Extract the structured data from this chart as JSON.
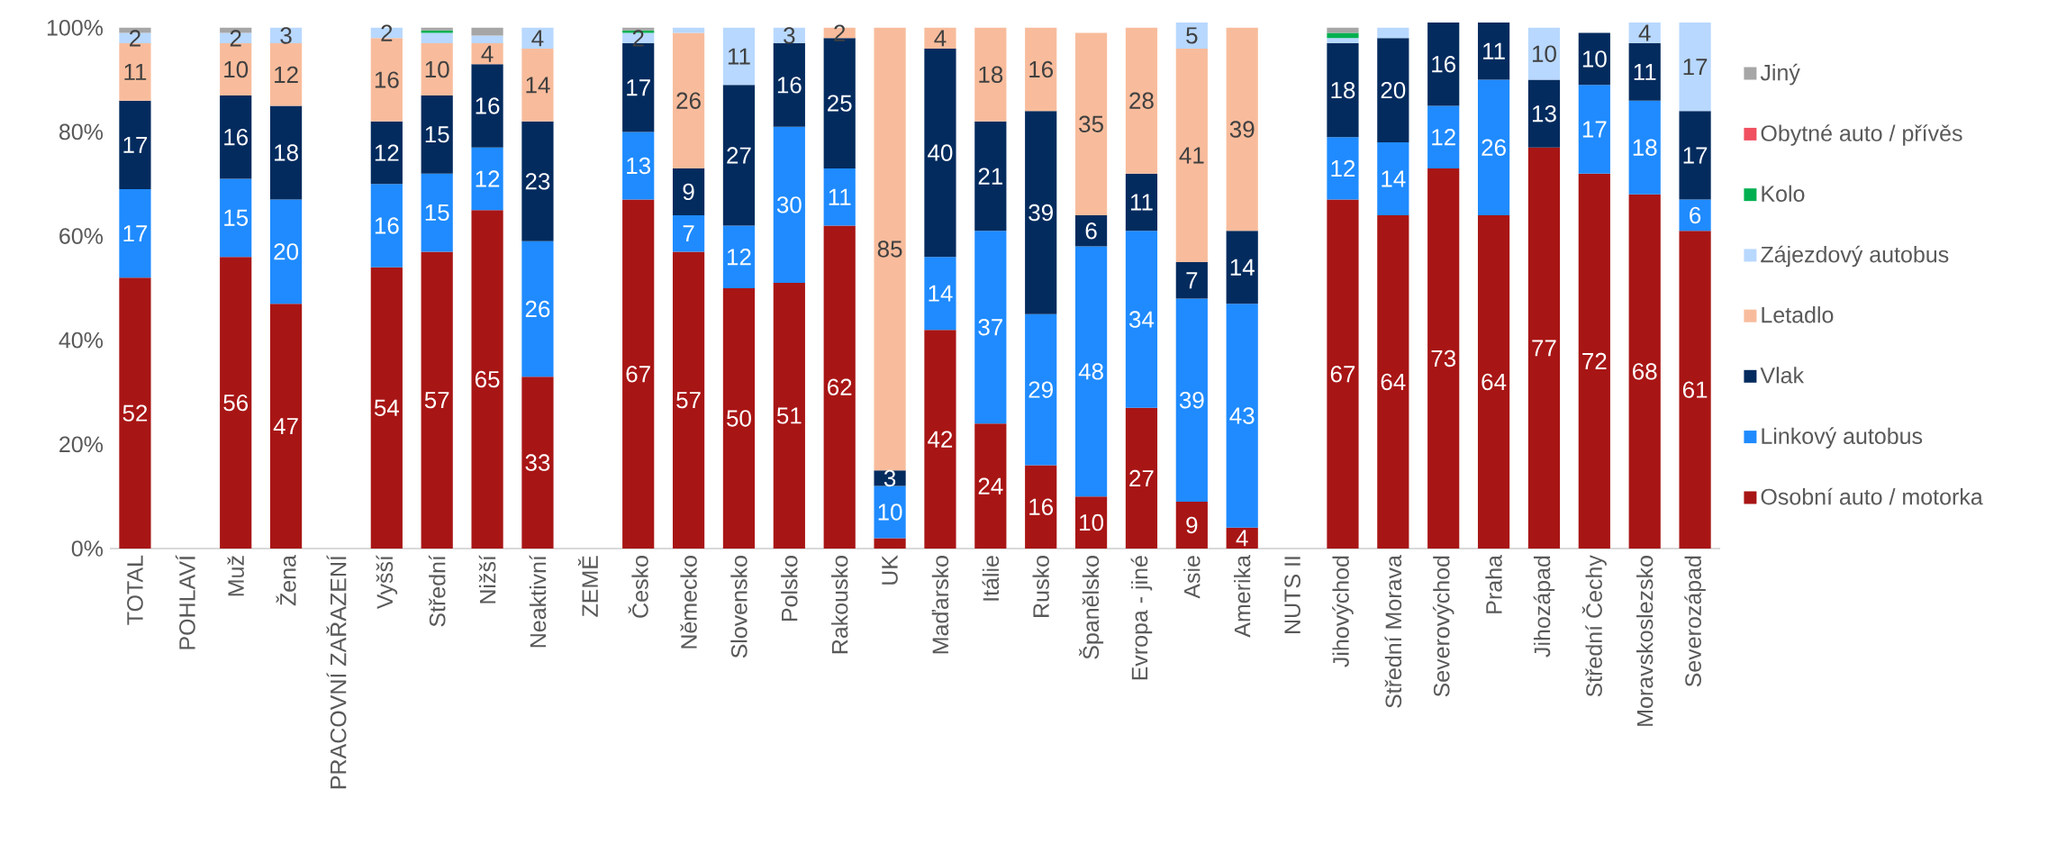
{
  "chart_data": {
    "type": "bar",
    "stacked": true,
    "legend": "right",
    "categories": [
      "TOTAL",
      "POHLAVÍ",
      "Muž",
      "Žena",
      "PRACOVNÍ ZAŘAZENÍ",
      "Vyšší",
      "Střední",
      "Nižší",
      "Neaktivní",
      "ZEMĚ",
      "Česko",
      "Německo",
      "Slovensko",
      "Polsko",
      "Rakousko",
      "UK",
      "Maďarsko",
      "Itálie",
      "Rusko",
      "Španělsko",
      "Evropa - jiné",
      "Asie",
      "Amerika",
      "NUTS II",
      "Jihovýchod",
      "Střední Morava",
      "Severovýchod",
      "Praha",
      "Jihozápad",
      "Střední Čechy",
      "Moravskoslezsko",
      "Severozápad"
    ],
    "ylim": [
      0,
      101
    ],
    "yticks": [
      {
        "value": 0,
        "label": "0%"
      },
      {
        "value": 20,
        "label": "20%"
      },
      {
        "value": 40,
        "label": "40%"
      },
      {
        "value": 60,
        "label": "60%"
      },
      {
        "value": 80,
        "label": "80%"
      },
      {
        "value": 100,
        "label": "100%"
      }
    ],
    "series": [
      {
        "name": "Osobní auto / motorka",
        "color": "#a81515",
        "values": [
          52,
          null,
          56,
          47,
          null,
          54,
          57,
          65,
          33,
          null,
          67,
          57,
          50,
          51,
          62,
          2,
          42,
          24,
          16,
          10,
          27,
          9,
          4,
          null,
          67,
          64,
          73,
          64,
          77,
          72,
          68,
          61
        ],
        "value_labels": [
          "52",
          null,
          "56",
          "47",
          null,
          "54",
          "57",
          "65",
          "33",
          null,
          "67",
          "57",
          "50",
          "51",
          "62",
          null,
          "42",
          "24",
          "16",
          "10",
          "27",
          "9",
          "4",
          null,
          "67",
          "64",
          "73",
          "64",
          "77",
          "72",
          "68",
          "61"
        ]
      },
      {
        "name": "Linkový autobus",
        "color": "#1f8bff",
        "values": [
          17,
          null,
          15,
          20,
          null,
          16,
          15,
          12,
          26,
          null,
          13,
          7,
          12,
          30,
          11,
          10,
          14,
          37,
          29,
          48,
          34,
          39,
          43,
          null,
          12,
          14,
          12,
          26,
          null,
          17,
          18,
          6
        ],
        "value_labels": [
          "17",
          null,
          "15",
          "20",
          null,
          "16",
          "15",
          "12",
          "26",
          null,
          "13",
          "7",
          "12",
          "30",
          "11",
          "10",
          "14",
          "37",
          "29",
          "48",
          "34",
          "39",
          "43",
          null,
          "12",
          "14",
          "12",
          "26",
          null,
          "17",
          "18",
          "6"
        ]
      },
      {
        "name": "Vlak",
        "color": "#032b5e",
        "values": [
          17,
          null,
          16,
          18,
          null,
          12,
          15,
          16,
          23,
          null,
          17,
          9,
          27,
          16,
          25,
          3,
          40,
          21,
          39,
          6,
          11,
          7,
          14,
          null,
          18,
          20,
          16,
          11,
          13,
          10,
          11,
          17
        ],
        "value_labels": [
          "17",
          null,
          "16",
          "18",
          null,
          "12",
          "15",
          "16",
          "23",
          null,
          "17",
          "9",
          "27",
          "16",
          "25",
          "3",
          "40",
          "21",
          "39",
          "6",
          "11",
          "7",
          "14",
          null,
          "18",
          "20",
          "16",
          "11",
          "13",
          "10",
          "11",
          "17"
        ]
      },
      {
        "name": "Letadlo",
        "color": "#f8bc9c",
        "values": [
          11,
          null,
          10,
          12,
          null,
          16,
          10,
          4,
          14,
          null,
          null,
          26,
          null,
          null,
          2,
          85,
          4,
          18,
          16,
          35,
          28,
          41,
          39,
          null,
          null,
          null,
          null,
          null,
          null,
          null,
          null,
          null
        ],
        "value_labels": [
          "11",
          null,
          "10",
          "12",
          null,
          "16",
          "10",
          "4",
          "14",
          null,
          null,
          "26",
          null,
          null,
          "2",
          "85",
          "4",
          "18",
          "16",
          "35",
          "28",
          "41",
          "39",
          null,
          null,
          null,
          null,
          null,
          null,
          null,
          null,
          null
        ]
      },
      {
        "name": "Zájezdový autobus",
        "color": "#b8d8ff",
        "values": [
          2,
          null,
          2,
          3,
          null,
          2,
          2,
          1.5,
          4,
          null,
          2,
          1,
          11,
          3,
          null,
          null,
          null,
          null,
          null,
          null,
          null,
          5,
          null,
          null,
          1,
          2,
          null,
          null,
          10,
          null,
          4,
          17
        ],
        "value_labels": [
          "2",
          null,
          "2",
          "3",
          null,
          "2",
          null,
          null,
          "4",
          null,
          "2",
          null,
          "11",
          "3",
          null,
          null,
          null,
          null,
          null,
          null,
          null,
          "5",
          null,
          null,
          null,
          null,
          null,
          null,
          "10",
          null,
          "4",
          "17"
        ]
      },
      {
        "name": "Kolo",
        "color": "#00b050",
        "values": [
          null,
          null,
          null,
          null,
          null,
          null,
          0.5,
          null,
          null,
          null,
          0.5,
          null,
          null,
          null,
          null,
          null,
          null,
          null,
          null,
          null,
          null,
          null,
          null,
          null,
          1,
          null,
          null,
          null,
          null,
          null,
          null,
          null
        ]
      },
      {
        "name": "Obytné auto / přívěs",
        "color": "#f05060",
        "values": [
          null,
          null,
          null,
          null,
          null,
          null,
          null,
          null,
          null,
          null,
          null,
          null,
          null,
          null,
          null,
          null,
          null,
          null,
          null,
          null,
          null,
          null,
          null,
          null,
          null,
          null,
          null,
          null,
          null,
          null,
          null,
          null
        ]
      },
      {
        "name": "Jiný",
        "color": "#a6a6a6",
        "values": [
          1,
          null,
          1,
          null,
          null,
          null,
          0.5,
          1.5,
          null,
          null,
          0.5,
          null,
          null,
          null,
          null,
          null,
          null,
          null,
          null,
          null,
          null,
          null,
          null,
          null,
          1,
          null,
          null,
          null,
          null,
          null,
          null,
          null
        ]
      }
    ]
  }
}
